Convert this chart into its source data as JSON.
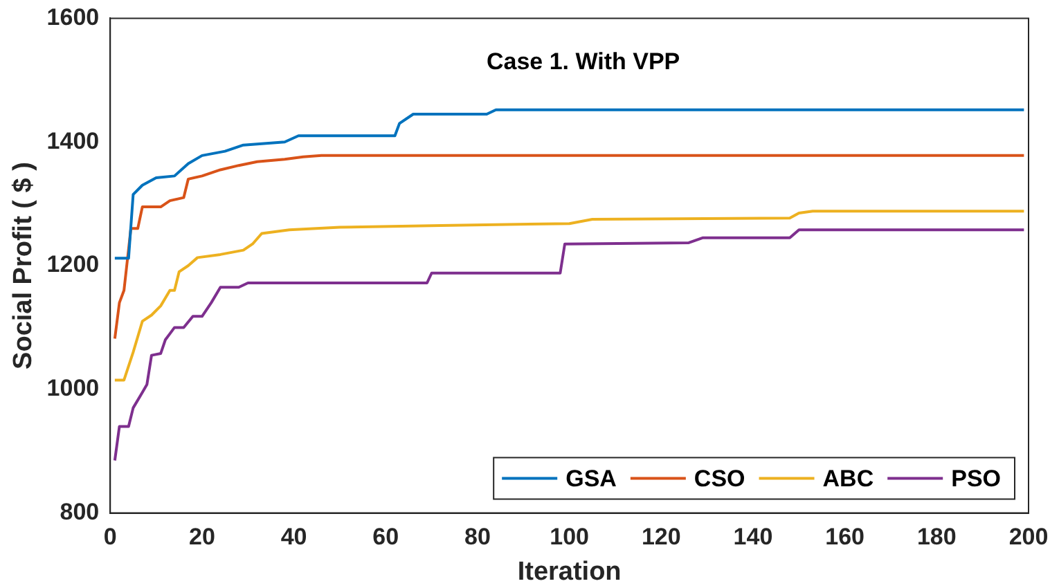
{
  "chart_data": {
    "type": "line",
    "title": "Case 1. With VPP",
    "xlabel": "Iteration",
    "ylabel": "Social Profit ( $ )",
    "xlim": [
      0,
      200
    ],
    "xticks": [
      0,
      20,
      40,
      60,
      80,
      100,
      120,
      140,
      160,
      180,
      200
    ],
    "ylim": [
      800,
      1600
    ],
    "yticks": [
      800,
      1000,
      1200,
      1400,
      1600
    ],
    "grid": false,
    "legend": "bottom right",
    "marker": "none",
    "line_style": "solid",
    "series": [
      {
        "name": "GSA",
        "color": "#0072bd",
        "x": [
          1,
          4,
          5,
          7,
          10,
          14,
          17,
          20,
          25,
          29,
          38,
          41,
          62,
          63,
          66,
          82,
          84,
          199
        ],
        "values": [
          1212,
          1212,
          1315,
          1330,
          1342,
          1345,
          1365,
          1378,
          1385,
          1395,
          1400,
          1410,
          1410,
          1430,
          1445,
          1445,
          1452,
          1452
        ]
      },
      {
        "name": "CSO",
        "color": "#d95319",
        "x": [
          1,
          2,
          3,
          4.5,
          6,
          7,
          11,
          13,
          16,
          17,
          20,
          24,
          28,
          32,
          38,
          42,
          46,
          199
        ],
        "values": [
          1082,
          1140,
          1160,
          1260,
          1260,
          1295,
          1295,
          1305,
          1310,
          1340,
          1345,
          1355,
          1362,
          1368,
          1372,
          1376,
          1378,
          1378
        ]
      },
      {
        "name": "ABC",
        "color": "#edb120",
        "x": [
          1,
          3,
          5,
          7,
          9,
          11,
          13,
          14,
          15,
          17,
          19,
          24,
          29,
          31,
          33,
          39,
          50,
          72,
          100,
          105,
          148,
          150,
          153,
          199
        ],
        "values": [
          1015,
          1015,
          1060,
          1110,
          1120,
          1135,
          1160,
          1160,
          1190,
          1200,
          1213,
          1218,
          1225,
          1235,
          1252,
          1258,
          1262,
          1265,
          1268,
          1275,
          1277,
          1285,
          1288,
          1288
        ]
      },
      {
        "name": "PSO",
        "color": "#7e2f8e",
        "x": [
          1,
          2,
          4,
          5,
          7,
          8,
          9,
          11,
          12,
          13,
          14,
          16,
          18,
          20,
          22,
          24,
          28,
          30,
          69,
          70,
          98,
          99,
          126,
          129,
          148,
          150,
          199
        ],
        "values": [
          885,
          940,
          940,
          970,
          995,
          1008,
          1055,
          1058,
          1080,
          1090,
          1100,
          1100,
          1118,
          1118,
          1140,
          1165,
          1165,
          1172,
          1172,
          1188,
          1188,
          1235,
          1237,
          1245,
          1245,
          1258,
          1258
        ]
      }
    ]
  }
}
